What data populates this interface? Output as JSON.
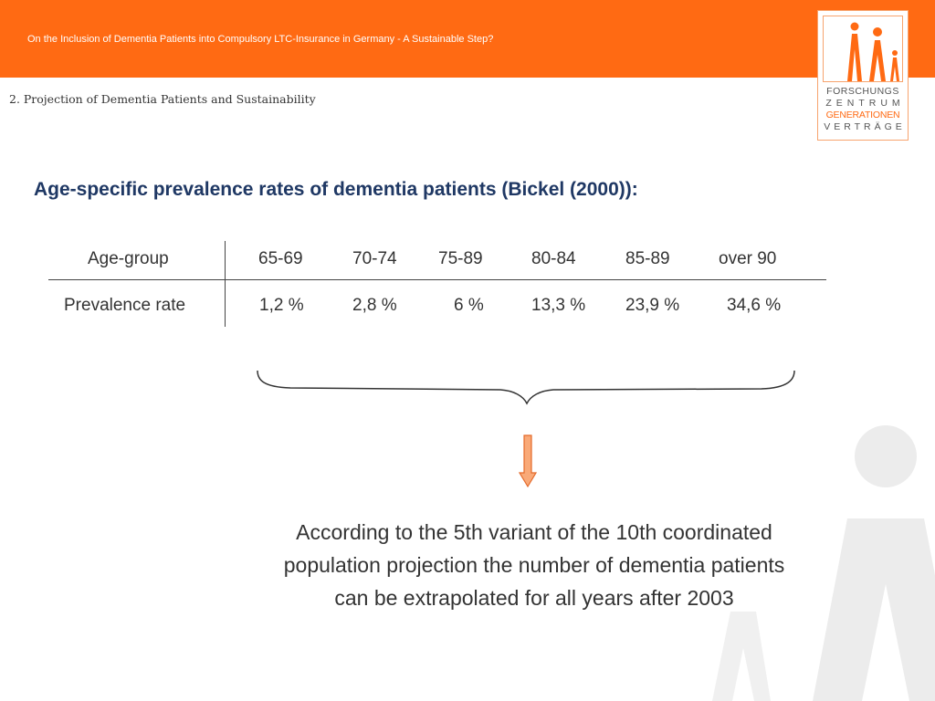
{
  "header": {
    "title": "On the Inclusion of Dementia Patients into Compulsory LTC-Insurance in Germany - A Sustainable Step?",
    "section": "2.  Projection of Dementia Patients and Sustainability"
  },
  "logo": {
    "line1": "FORSCHUNGS",
    "line2": "ZENTRUM",
    "line3": "GENERATIONEN",
    "line4": "VERTRÄGE"
  },
  "slide": {
    "heading": "Age-specific prevalence rates of dementia patients (Bickel (2000)):",
    "table": {
      "header_label": "Age-group",
      "row_label": "Prevalence rate",
      "age_groups": [
        "65-69",
        "70-74",
        "75-89",
        "80-84",
        "85-89",
        "over 90"
      ],
      "rates": [
        "1,2 %",
        "2,8 %",
        "6 %",
        "13,3 %",
        "23,9 %",
        "34,6 %"
      ]
    },
    "note": {
      "line1": "According to the 5th variant of the 10th coordinated",
      "line2": "population projection the number of dementia patients",
      "line3": "can be extrapolated for all years after 2003"
    }
  },
  "colors": {
    "accent": "#ff6a13",
    "heading": "#1f3864",
    "watermark": "#ececec"
  }
}
